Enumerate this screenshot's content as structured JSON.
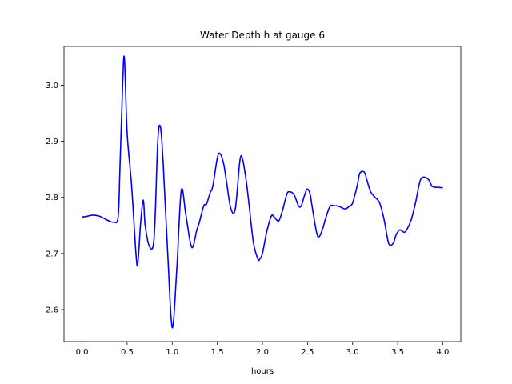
{
  "chart_data": {
    "type": "line",
    "title": "Water Depth h at gauge 6",
    "xlabel": "hours",
    "ylabel": "",
    "xlim": [
      -0.2,
      4.2
    ],
    "ylim": [
      2.543,
      3.069
    ],
    "xticks": [
      0.0,
      0.5,
      1.0,
      1.5,
      2.0,
      2.5,
      3.0,
      3.5,
      4.0
    ],
    "xtick_labels": [
      "0.0",
      "0.5",
      "1.0",
      "1.5",
      "2.0",
      "2.5",
      "3.0",
      "3.5",
      "4.0"
    ],
    "yticks": [
      2.6,
      2.7,
      2.8,
      2.9,
      3.0
    ],
    "ytick_labels": [
      "2.6",
      "2.7",
      "2.8",
      "2.9",
      "3.0"
    ],
    "grid": false,
    "series": [
      {
        "color": "#0000ff",
        "x": [
          0.0,
          0.05,
          0.1,
          0.15,
          0.2,
          0.25,
          0.3,
          0.35,
          0.4,
          0.42,
          0.45,
          0.47,
          0.5,
          0.55,
          0.6,
          0.62,
          0.65,
          0.68,
          0.7,
          0.75,
          0.8,
          0.84,
          0.87,
          0.9,
          0.95,
          1.0,
          1.05,
          1.1,
          1.15,
          1.2,
          1.23,
          1.27,
          1.3,
          1.35,
          1.38,
          1.42,
          1.45,
          1.5,
          1.53,
          1.57,
          1.6,
          1.65,
          1.7,
          1.75,
          1.78,
          1.82,
          1.85,
          1.9,
          1.95,
          1.97,
          2.0,
          2.05,
          2.1,
          2.13,
          2.18,
          2.22,
          2.27,
          2.3,
          2.35,
          2.4,
          2.43,
          2.47,
          2.5,
          2.53,
          2.55,
          2.6,
          2.63,
          2.67,
          2.7,
          2.75,
          2.8,
          2.85,
          2.9,
          2.93,
          2.97,
          3.0,
          3.05,
          3.08,
          3.13,
          3.16,
          3.2,
          3.25,
          3.3,
          3.35,
          3.4,
          3.45,
          3.48,
          3.52,
          3.57,
          3.6,
          3.65,
          3.7,
          3.75,
          3.8,
          3.85,
          3.88,
          3.92,
          3.95,
          4.0
        ],
        "y": [
          2.765,
          2.766,
          2.768,
          2.768,
          2.766,
          2.762,
          2.758,
          2.756,
          2.765,
          2.85,
          3.0,
          3.048,
          2.915,
          2.82,
          2.695,
          2.685,
          2.755,
          2.795,
          2.75,
          2.712,
          2.73,
          2.9,
          2.925,
          2.86,
          2.7,
          2.568,
          2.67,
          2.812,
          2.77,
          2.72,
          2.712,
          2.74,
          2.755,
          2.785,
          2.788,
          2.808,
          2.82,
          2.87,
          2.878,
          2.86,
          2.83,
          2.78,
          2.78,
          2.865,
          2.868,
          2.83,
          2.79,
          2.72,
          2.69,
          2.69,
          2.7,
          2.74,
          2.767,
          2.765,
          2.758,
          2.775,
          2.805,
          2.81,
          2.805,
          2.785,
          2.785,
          2.805,
          2.815,
          2.805,
          2.785,
          2.738,
          2.73,
          2.745,
          2.762,
          2.784,
          2.785,
          2.784,
          2.78,
          2.78,
          2.785,
          2.79,
          2.82,
          2.843,
          2.845,
          2.83,
          2.81,
          2.8,
          2.79,
          2.76,
          2.718,
          2.718,
          2.732,
          2.742,
          2.738,
          2.742,
          2.76,
          2.792,
          2.83,
          2.836,
          2.83,
          2.82,
          2.818,
          2.818,
          2.817
        ]
      }
    ]
  }
}
